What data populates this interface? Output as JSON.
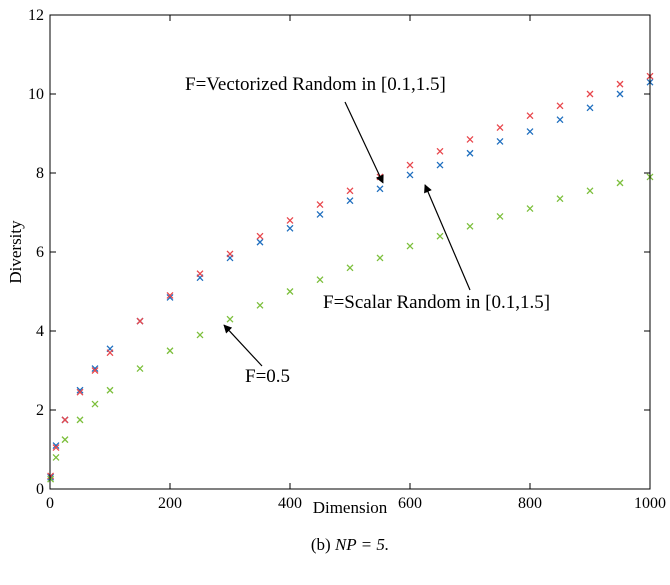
{
  "chart_data": {
    "type": "scatter",
    "title": "",
    "xlabel": "Dimension",
    "ylabel": "Diversity",
    "xlim": [
      0,
      1000
    ],
    "ylim": [
      0,
      12
    ],
    "x_ticks": [
      "0",
      "200",
      "400",
      "600",
      "800",
      "1000"
    ],
    "y_ticks": [
      "0",
      "2",
      "4",
      "6",
      "8",
      "10",
      "12"
    ],
    "grid": false,
    "legend": "none",
    "caption_prefix": "(b) ",
    "caption_math": "NP = 5.",
    "annotations": [
      {
        "text": "F=Vectorized Random in [0.1,1.5]",
        "target": {
          "x": 555,
          "y": 7.75
        }
      },
      {
        "text": "F=Scalar Random in [0.1,1.5]",
        "target": {
          "x": 625,
          "y": 7.7
        }
      },
      {
        "text": "F=0.5",
        "target": {
          "x": 290,
          "y": 4.15
        }
      }
    ],
    "series": [
      {
        "marker": "x",
        "color": "#1f6fbf",
        "x": [
          1,
          10,
          25,
          50,
          75,
          100,
          150,
          200,
          250,
          300,
          350,
          400,
          450,
          500,
          550,
          600,
          650,
          700,
          750,
          800,
          850,
          900,
          950,
          1000
        ],
        "y": [
          0.3,
          1.1,
          1.75,
          2.5,
          3.05,
          3.55,
          4.25,
          4.85,
          5.35,
          5.85,
          6.25,
          6.6,
          6.95,
          7.3,
          7.6,
          7.95,
          8.2,
          8.5,
          8.8,
          9.05,
          9.35,
          9.65,
          10.0,
          10.3
        ]
      },
      {
        "marker": "x",
        "color": "#e8474c",
        "x": [
          1,
          10,
          25,
          50,
          75,
          100,
          150,
          200,
          250,
          300,
          350,
          400,
          450,
          500,
          550,
          600,
          650,
          700,
          750,
          800,
          850,
          900,
          950,
          1000
        ],
        "y": [
          0.33,
          1.05,
          1.75,
          2.45,
          3.0,
          3.45,
          4.25,
          4.9,
          5.45,
          5.95,
          6.4,
          6.8,
          7.2,
          7.55,
          7.9,
          8.2,
          8.55,
          8.85,
          9.15,
          9.45,
          9.7,
          10.0,
          10.25,
          10.45
        ]
      },
      {
        "marker": "x",
        "color": "#7cbf3c",
        "x": [
          1,
          10,
          25,
          50,
          75,
          100,
          150,
          200,
          250,
          300,
          350,
          400,
          450,
          500,
          550,
          600,
          650,
          700,
          750,
          800,
          850,
          900,
          950,
          1000
        ],
        "y": [
          0.25,
          0.8,
          1.25,
          1.75,
          2.15,
          2.5,
          3.05,
          3.5,
          3.9,
          4.3,
          4.65,
          5.0,
          5.3,
          5.6,
          5.85,
          6.15,
          6.4,
          6.65,
          6.9,
          7.1,
          7.35,
          7.55,
          7.75,
          7.9
        ]
      }
    ]
  }
}
